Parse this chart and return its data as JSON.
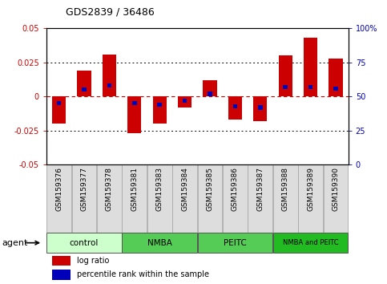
{
  "title": "GDS2839 / 36486",
  "samples": [
    "GSM159376",
    "GSM159377",
    "GSM159378",
    "GSM159381",
    "GSM159383",
    "GSM159384",
    "GSM159385",
    "GSM159386",
    "GSM159387",
    "GSM159388",
    "GSM159389",
    "GSM159390"
  ],
  "log_ratio": [
    -0.02,
    0.019,
    0.031,
    -0.027,
    -0.02,
    -0.008,
    0.012,
    -0.017,
    -0.018,
    0.03,
    0.043,
    0.028
  ],
  "percentile_rank": [
    45,
    55,
    58,
    45,
    44,
    47,
    52,
    43,
    42,
    57,
    57,
    56
  ],
  "bar_width": 0.55,
  "blue_bar_width": 0.18,
  "ylim": [
    -0.05,
    0.05
  ],
  "yticks_left": [
    -0.05,
    -0.025,
    0,
    0.025,
    0.05
  ],
  "yticks_right": [
    0,
    25,
    50,
    75,
    100
  ],
  "ytick_labels_left": [
    "-0.05",
    "-0.025",
    "0",
    "0.025",
    "0.05"
  ],
  "ytick_labels_right": [
    "0",
    "25",
    "50",
    "75",
    "100%"
  ],
  "red_color": "#cc0000",
  "blue_color": "#0000bb",
  "group_colors": [
    "#ccffcc",
    "#55cc55",
    "#55cc55",
    "#22bb22"
  ],
  "agent_groups": [
    {
      "label": "control",
      "start": 0,
      "end": 3
    },
    {
      "label": "NMBA",
      "start": 3,
      "end": 6
    },
    {
      "label": "PEITC",
      "start": 6,
      "end": 9
    },
    {
      "label": "NMBA and PEITC",
      "start": 9,
      "end": 12
    }
  ],
  "legend_red_label": "log ratio",
  "legend_blue_label": "percentile rank within the sample",
  "agent_label": "agent"
}
